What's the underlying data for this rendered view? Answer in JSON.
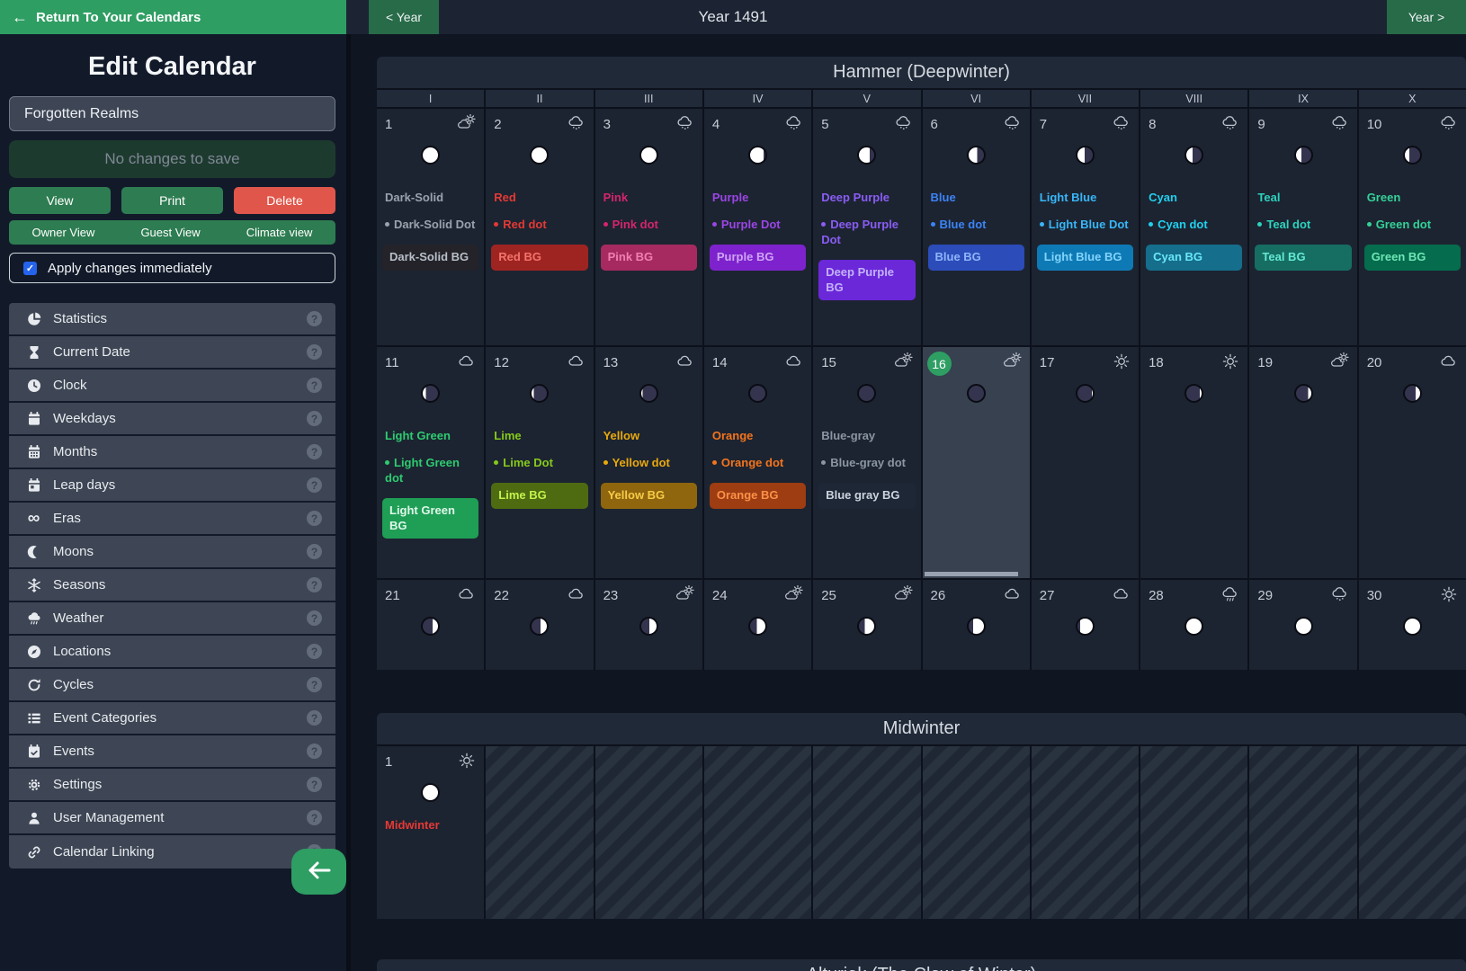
{
  "topbar": {
    "return_label": "Return To Your Calendars",
    "prev_year_label": "< Year",
    "year_title": "Year 1491",
    "next_year_label": "Year >"
  },
  "sidebar": {
    "title": "Edit Calendar",
    "calendar_name": "Forgotten Realms",
    "save_button_label": "No changes to save",
    "actions": {
      "view": "View",
      "print": "Print",
      "delete": "Delete"
    },
    "views": {
      "owner": "Owner View",
      "guest": "Guest View",
      "climate": "Climate view"
    },
    "apply_label": "Apply changes immediately",
    "apply_checked": true,
    "menu": [
      {
        "icon": "pie-chart-icon",
        "label": "Statistics"
      },
      {
        "icon": "hourglass-icon",
        "label": "Current Date"
      },
      {
        "icon": "clock-icon",
        "label": "Clock"
      },
      {
        "icon": "calendar-icon",
        "label": "Weekdays"
      },
      {
        "icon": "calendar-grid-icon",
        "label": "Months"
      },
      {
        "icon": "calendar-day-icon",
        "label": "Leap days"
      },
      {
        "icon": "infinity-icon",
        "label": "Eras"
      },
      {
        "icon": "moon-icon",
        "label": "Moons"
      },
      {
        "icon": "snowflake-icon",
        "label": "Seasons"
      },
      {
        "icon": "cloud-rain-icon",
        "label": "Weather"
      },
      {
        "icon": "compass-icon",
        "label": "Locations"
      },
      {
        "icon": "rotate-icon",
        "label": "Cycles"
      },
      {
        "icon": "list-icon",
        "label": "Event Categories"
      },
      {
        "icon": "calendar-check-icon",
        "label": "Events"
      },
      {
        "icon": "gear-icon",
        "label": "Settings"
      },
      {
        "icon": "user-icon",
        "label": "User Management"
      },
      {
        "icon": "link-icon",
        "label": "Calendar Linking"
      }
    ]
  },
  "event_colors": {
    "gray": {
      "t": "#9aa2ae",
      "b": "#232329",
      "bt": "#b9bfc9"
    },
    "red": {
      "t": "#e53935",
      "b": "#9e2422",
      "bt": "#f4736a"
    },
    "pink": {
      "t": "#d6246e",
      "b": "#a62a60",
      "bt": "#ef7fb1"
    },
    "purple": {
      "t": "#9b45e6",
      "b": "#7d22cc",
      "bt": "#cfa4f7"
    },
    "deepPurple": {
      "t": "#8a5cf5",
      "b": "#6b28d9",
      "bt": "#c3b2fb"
    },
    "blue": {
      "t": "#3c83f6",
      "b": "#2c4cba",
      "bt": "#8fb4f9"
    },
    "lightBlue": {
      "t": "#38b6f8",
      "b": "#0e7ab5",
      "bt": "#82d4fc"
    },
    "cyan": {
      "t": "#21d0ee",
      "b": "#156e8c",
      "bt": "#69e6f8"
    },
    "teal": {
      "t": "#2cd3be",
      "b": "#166e63",
      "bt": "#63e9d3"
    },
    "green": {
      "t": "#33d298",
      "b": "#056c4d",
      "bt": "#6fe7b6"
    },
    "lightGreen": {
      "t": "#2ecb70",
      "b": "#1f9e55",
      "bt": "#dff8ea"
    },
    "lime": {
      "t": "#86ca1a",
      "b": "#4e6b11",
      "bt": "#c3f34c"
    },
    "yellow": {
      "t": "#eaa90c",
      "b": "#8f660e",
      "bt": "#f7cb46"
    },
    "orange": {
      "t": "#f5741c",
      "b": "#9e3c12",
      "bt": "#fb9147"
    },
    "blueGray": {
      "t": "#8c95a3",
      "b": "#1d2736",
      "bt": "#ccd4de"
    }
  },
  "ui_colors": {
    "accent_green": "#2f9e63",
    "button_green": "#2e7d52",
    "year_button_green": "#276b48",
    "delete_red": "#e0564a",
    "checkbox_blue": "#2563eb",
    "current_day_badge": "#2e9e63",
    "moon_lit": "#ffffff",
    "moon_unlit": "#34344e"
  },
  "calendar": {
    "months": [
      {
        "name": "Hammer (Deepwinter)",
        "weekdays": [
          "I",
          "II",
          "III",
          "IV",
          "V",
          "VI",
          "VII",
          "VIII",
          "IX",
          "X"
        ],
        "days": [
          {
            "num": 1,
            "weather": "cloud-sun",
            "moon": [
              "full",
              100
            ],
            "events": [
              [
                "solid",
                "Dark-Solid",
                "gray"
              ],
              [
                "dot",
                "Dark-Solid Dot",
                "gray"
              ],
              [
                "bg",
                "Dark-Solid BG",
                "gray"
              ]
            ]
          },
          {
            "num": 2,
            "weather": "snow",
            "moon": [
              "full",
              100
            ],
            "events": [
              [
                "solid",
                "Red",
                "red"
              ],
              [
                "dot",
                "Red dot",
                "red"
              ],
              [
                "bg",
                "Red BG",
                "red"
              ]
            ]
          },
          {
            "num": 3,
            "weather": "snow",
            "moon": [
              "full",
              100
            ],
            "events": [
              [
                "solid",
                "Pink",
                "pink"
              ],
              [
                "dot",
                "Pink dot",
                "pink"
              ],
              [
                "bg",
                "Pink BG",
                "pink"
              ]
            ]
          },
          {
            "num": 4,
            "weather": "snow",
            "moon": [
              "left",
              88
            ],
            "events": [
              [
                "solid",
                "Purple",
                "purple"
              ],
              [
                "dot",
                "Purple Dot",
                "purple"
              ],
              [
                "bg",
                "Purple BG",
                "purple"
              ]
            ]
          },
          {
            "num": 5,
            "weather": "snow",
            "moon": [
              "left",
              72
            ],
            "events": [
              [
                "solid",
                "Deep Purple",
                "deepPurple"
              ],
              [
                "dot",
                "Deep Purple Dot",
                "deepPurple"
              ],
              [
                "bg",
                "Deep Purple BG",
                "deepPurple"
              ]
            ]
          },
          {
            "num": 6,
            "weather": "snow",
            "moon": [
              "left",
              55
            ],
            "events": [
              [
                "solid",
                "Blue",
                "blue"
              ],
              [
                "dot",
                "Blue dot",
                "blue"
              ],
              [
                "bg",
                "Blue BG",
                "blue"
              ]
            ]
          },
          {
            "num": 7,
            "weather": "snow",
            "moon": [
              "left",
              48
            ],
            "events": [
              [
                "solid",
                "Light Blue",
                "lightBlue"
              ],
              [
                "dot",
                "Light Blue Dot",
                "lightBlue"
              ],
              [
                "bg",
                "Light Blue BG",
                "lightBlue"
              ]
            ]
          },
          {
            "num": 8,
            "weather": "snow",
            "moon": [
              "left",
              42
            ],
            "events": [
              [
                "solid",
                "Cyan",
                "cyan"
              ],
              [
                "dot",
                "Cyan dot",
                "cyan"
              ],
              [
                "bg",
                "Cyan BG",
                "cyan"
              ]
            ]
          },
          {
            "num": 9,
            "weather": "snow",
            "moon": [
              "left",
              35
            ],
            "events": [
              [
                "solid",
                "Teal",
                "teal"
              ],
              [
                "dot",
                "Teal dot",
                "teal"
              ],
              [
                "bg",
                "Teal BG",
                "teal"
              ]
            ]
          },
          {
            "num": 10,
            "weather": "snow",
            "moon": [
              "left",
              28
            ],
            "events": [
              [
                "solid",
                "Green",
                "green"
              ],
              [
                "dot",
                "Green dot",
                "green"
              ],
              [
                "bg",
                "Green BG",
                "green"
              ]
            ]
          },
          {
            "num": 11,
            "weather": "cloud",
            "moon": [
              "left",
              22
            ],
            "events": [
              [
                "solid",
                "Light Green",
                "lightGreen"
              ],
              [
                "dot",
                "Light Green dot",
                "lightGreen"
              ],
              [
                "bg",
                "Light Green BG",
                "lightGreen"
              ]
            ]
          },
          {
            "num": 12,
            "weather": "cloud",
            "moon": [
              "left",
              16
            ],
            "events": [
              [
                "solid",
                "Lime",
                "lime"
              ],
              [
                "dot",
                "Lime Dot",
                "lime"
              ],
              [
                "bg",
                "Lime BG",
                "lime"
              ]
            ]
          },
          {
            "num": 13,
            "weather": "cloud",
            "moon": [
              "left",
              10
            ],
            "events": [
              [
                "solid",
                "Yellow",
                "yellow"
              ],
              [
                "dot",
                "Yellow dot",
                "yellow"
              ],
              [
                "bg",
                "Yellow BG",
                "yellow"
              ]
            ]
          },
          {
            "num": 14,
            "weather": "cloud",
            "moon": [
              "new",
              0
            ],
            "events": [
              [
                "solid",
                "Orange",
                "orange"
              ],
              [
                "dot",
                "Orange dot",
                "orange"
              ],
              [
                "bg",
                "Orange BG",
                "orange"
              ]
            ]
          },
          {
            "num": 15,
            "weather": "cloud-sun",
            "moon": [
              "new",
              0
            ],
            "events": [
              [
                "solid",
                "Blue-gray",
                "blueGray"
              ],
              [
                "dot",
                "Blue-gray dot",
                "blueGray"
              ],
              [
                "bg",
                "Blue gray BG",
                "blueGray"
              ]
            ]
          },
          {
            "num": 16,
            "weather": "cloud-sun",
            "moon": [
              "new",
              0
            ],
            "current": true,
            "scrollbar": true,
            "events": []
          },
          {
            "num": 17,
            "weather": "sun",
            "moon": [
              "right",
              6
            ],
            "events": []
          },
          {
            "num": 18,
            "weather": "sun",
            "moon": [
              "right",
              12
            ],
            "events": []
          },
          {
            "num": 19,
            "weather": "cloud-sun",
            "moon": [
              "right",
              20
            ],
            "events": []
          },
          {
            "num": 20,
            "weather": "cloud",
            "moon": [
              "right",
              28
            ],
            "events": []
          },
          {
            "num": 21,
            "weather": "cloud",
            "moon": [
              "right",
              36
            ],
            "events": []
          },
          {
            "num": 22,
            "weather": "cloud",
            "moon": [
              "right",
              42
            ],
            "events": []
          },
          {
            "num": 23,
            "weather": "cloud-sun",
            "moon": [
              "right",
              48
            ],
            "events": []
          },
          {
            "num": 24,
            "weather": "cloud-sun",
            "moon": [
              "right",
              55
            ],
            "events": []
          },
          {
            "num": 25,
            "weather": "cloud-sun",
            "moon": [
              "right",
              62
            ],
            "events": []
          },
          {
            "num": 26,
            "weather": "cloud",
            "moon": [
              "right",
              70
            ],
            "events": []
          },
          {
            "num": 27,
            "weather": "cloud",
            "moon": [
              "right",
              82
            ],
            "events": []
          },
          {
            "num": 28,
            "weather": "rain",
            "moon": [
              "full",
              100
            ],
            "events": []
          },
          {
            "num": 29,
            "weather": "snow",
            "moon": [
              "full",
              100
            ],
            "events": []
          },
          {
            "num": 30,
            "weather": "sun",
            "moon": [
              "full",
              100
            ],
            "events": []
          }
        ]
      },
      {
        "name": "Midwinter",
        "intercalary": true,
        "striped_cells": 9,
        "days": [
          {
            "num": 1,
            "weather": "sun",
            "moon": [
              "full",
              100
            ],
            "events": [
              [
                "solid",
                "Midwinter",
                "red"
              ]
            ]
          }
        ]
      },
      {
        "name": "Alturiak (The Claw of Winter)",
        "header_only": true
      }
    ]
  }
}
